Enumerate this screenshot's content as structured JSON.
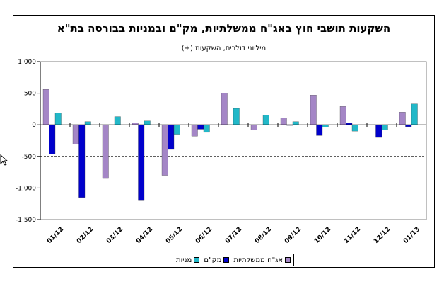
{
  "chart_data": {
    "type": "bar",
    "title": "השקעות תושבי חוץ באג\"ח ממשלתיות, מק\"ם ובמניות בבורסה בת\"א",
    "subtitle": "מיליוני דולרים, השקעות (+)",
    "categories": [
      "01/12",
      "02/12",
      "03/12",
      "04/12",
      "05/12",
      "06/12",
      "07/12",
      "08/12",
      "09/12",
      "10/12",
      "11/12",
      "12/12",
      "01/13"
    ],
    "series": [
      {
        "name": "אג\"ח ממשלתיות",
        "color": "#a486c6",
        "values": [
          560,
          -310,
          -850,
          30,
          -800,
          -180,
          500,
          -80,
          110,
          470,
          290,
          0,
          200
        ]
      },
      {
        "name": "מק\"ם",
        "color": "#0000cc",
        "values": [
          -460,
          -1150,
          0,
          -1200,
          -390,
          -70,
          0,
          0,
          -10,
          -170,
          25,
          -200,
          -30
        ]
      },
      {
        "name": "מניות",
        "color": "#22b8c8",
        "values": [
          190,
          50,
          130,
          60,
          -150,
          -120,
          260,
          150,
          50,
          -40,
          -100,
          -80,
          330
        ]
      }
    ],
    "yticks": [
      1000,
      500,
      0,
      -500,
      -1000,
      -1500
    ],
    "ytick_labels": [
      "1,000",
      "500",
      "0",
      "-500",
      "-1,000",
      "-1,500"
    ],
    "ylim": [
      -1500,
      1000
    ],
    "grid": "dashed horizontal",
    "legend_position": "bottom-center"
  }
}
